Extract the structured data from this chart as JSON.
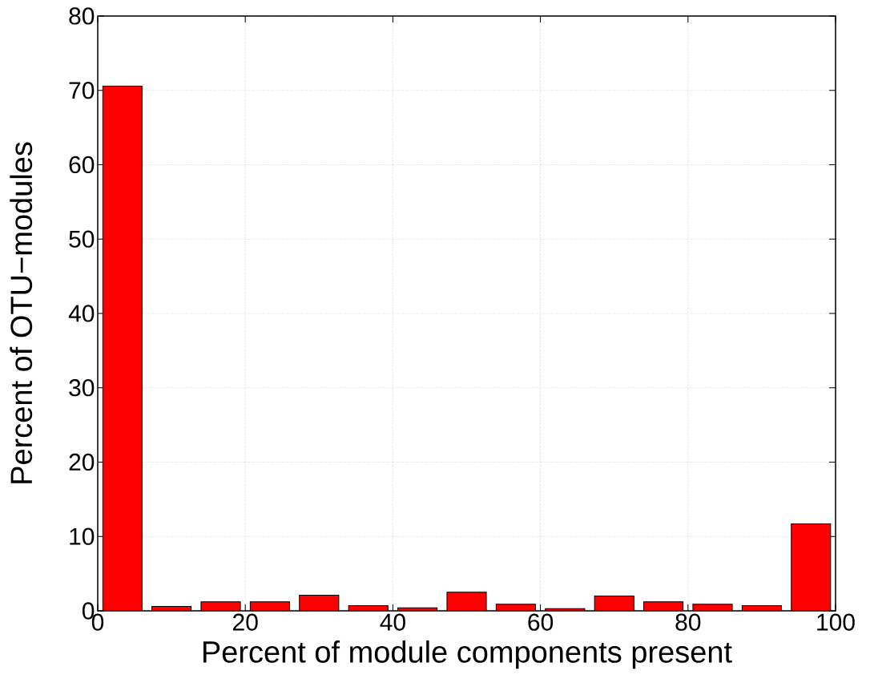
{
  "chart_data": {
    "type": "histogram",
    "xlabel": "Percent of module components present",
    "ylabel": "Percent of OTU−modules",
    "bins": [
      0,
      6.667,
      13.333,
      20,
      26.667,
      33.333,
      40,
      46.667,
      53.333,
      60,
      66.667,
      73.333,
      80,
      86.667,
      93.333,
      100
    ],
    "values": [
      70.6,
      0.6,
      1.2,
      1.2,
      2.1,
      0.7,
      0.4,
      2.5,
      0.9,
      0.3,
      2.0,
      1.2,
      0.9,
      0.7,
      11.7
    ],
    "color": "#ff0000",
    "xlim": [
      0,
      100
    ],
    "ylim": [
      0,
      80
    ],
    "xticks": [
      0,
      20,
      40,
      60,
      80,
      100
    ],
    "yticks": [
      0,
      10,
      20,
      30,
      40,
      50,
      60,
      70,
      80
    ],
    "grid": true
  }
}
